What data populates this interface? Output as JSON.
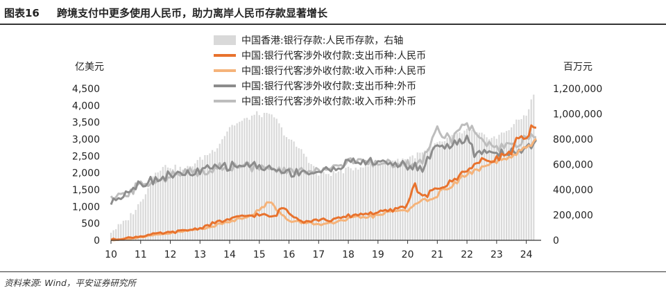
{
  "figure": {
    "number": "图表16",
    "title": "跨境支付中更多使用人民币，助力离岸人民币存款显著增长",
    "source": "资料来源: Wind，平安证券研究所"
  },
  "chart_data": {
    "type": "line",
    "left_axis_unit": "亿美元",
    "right_axis_unit": "百万元",
    "x_tick_labels": [
      "10",
      "11",
      "12",
      "13",
      "14",
      "15",
      "16",
      "17",
      "18",
      "19",
      "20",
      "21",
      "22",
      "23",
      "24"
    ],
    "x_range": [
      2010.0,
      2024.5
    ],
    "left_ticks": [
      "0",
      "500",
      "1,000",
      "1,500",
      "2,000",
      "2,500",
      "3,000",
      "3,500",
      "4,000",
      "4,500"
    ],
    "right_ticks": [
      "0",
      "200,000",
      "400,000",
      "600,000",
      "800,000",
      "1,000,000",
      "1,200,000"
    ],
    "ylim_left": [
      0,
      4500
    ],
    "ylim_right": [
      0,
      1200000
    ],
    "legend_placement": "top-center",
    "grid": false,
    "series": [
      {
        "name": "中国香港:银行存款:人民币存款，右轴",
        "axis": "right",
        "style": "bar",
        "color": "#d9d9d9",
        "points": [
          [
            2010.0,
            70000
          ],
          [
            2010.5,
            150000
          ],
          [
            2011.0,
            300000
          ],
          [
            2011.5,
            550000
          ],
          [
            2011.9,
            590000
          ],
          [
            2012.5,
            560000
          ],
          [
            2013.0,
            640000
          ],
          [
            2013.5,
            720000
          ],
          [
            2013.8,
            820000
          ],
          [
            2014.0,
            900000
          ],
          [
            2014.5,
            950000
          ],
          [
            2014.9,
            1000000
          ],
          [
            2015.5,
            980000
          ],
          [
            2015.8,
            860000
          ],
          [
            2016.0,
            800000
          ],
          [
            2016.5,
            690000
          ],
          [
            2017.0,
            520000
          ],
          [
            2017.5,
            530000
          ],
          [
            2018.0,
            560000
          ],
          [
            2018.5,
            590000
          ],
          [
            2019.0,
            600000
          ],
          [
            2019.5,
            630000
          ],
          [
            2020.0,
            650000
          ],
          [
            2020.5,
            690000
          ],
          [
            2021.0,
            760000
          ],
          [
            2021.5,
            820000
          ],
          [
            2022.0,
            870000
          ],
          [
            2022.5,
            830000
          ],
          [
            2023.0,
            810000
          ],
          [
            2023.5,
            900000
          ],
          [
            2024.0,
            1000000
          ],
          [
            2024.3,
            1180000
          ]
        ]
      },
      {
        "name": "中国:银行代客涉外收付款:支出币种:人民币",
        "axis": "left",
        "style": "line",
        "color": "#e8722d",
        "points": [
          [
            2010.0,
            20
          ],
          [
            2010.5,
            60
          ],
          [
            2011.0,
            120
          ],
          [
            2011.5,
            190
          ],
          [
            2012.0,
            230
          ],
          [
            2012.5,
            290
          ],
          [
            2013.0,
            360
          ],
          [
            2013.5,
            520
          ],
          [
            2014.0,
            620
          ],
          [
            2014.5,
            720
          ],
          [
            2015.0,
            760
          ],
          [
            2015.5,
            690
          ],
          [
            2015.8,
            1000
          ],
          [
            2016.0,
            820
          ],
          [
            2016.5,
            560
          ],
          [
            2017.0,
            610
          ],
          [
            2017.5,
            600
          ],
          [
            2018.0,
            720
          ],
          [
            2018.5,
            790
          ],
          [
            2019.0,
            820
          ],
          [
            2019.5,
            890
          ],
          [
            2020.0,
            1050
          ],
          [
            2020.2,
            1700
          ],
          [
            2020.5,
            1260
          ],
          [
            2021.0,
            1530
          ],
          [
            2021.5,
            1730
          ],
          [
            2022.0,
            2120
          ],
          [
            2022.5,
            2350
          ],
          [
            2023.0,
            2430
          ],
          [
            2023.5,
            2630
          ],
          [
            2023.7,
            3050
          ],
          [
            2024.0,
            2950
          ],
          [
            2024.2,
            3400
          ],
          [
            2024.4,
            3200
          ]
        ]
      },
      {
        "name": "中国:银行代客涉外收付款:收入币种:人民币",
        "axis": "left",
        "style": "line",
        "color": "#f5b37a",
        "points": [
          [
            2010.0,
            10
          ],
          [
            2010.5,
            40
          ],
          [
            2011.0,
            90
          ],
          [
            2011.5,
            150
          ],
          [
            2012.0,
            210
          ],
          [
            2012.5,
            270
          ],
          [
            2013.0,
            340
          ],
          [
            2013.5,
            430
          ],
          [
            2014.0,
            560
          ],
          [
            2014.5,
            690
          ],
          [
            2015.0,
            880
          ],
          [
            2015.4,
            1200
          ],
          [
            2015.6,
            900
          ],
          [
            2016.0,
            560
          ],
          [
            2016.5,
            530
          ],
          [
            2017.0,
            480
          ],
          [
            2017.5,
            500
          ],
          [
            2018.0,
            630
          ],
          [
            2018.5,
            700
          ],
          [
            2019.0,
            720
          ],
          [
            2019.5,
            880
          ],
          [
            2020.0,
            900
          ],
          [
            2020.5,
            1150
          ],
          [
            2021.0,
            1350
          ],
          [
            2021.5,
            1650
          ],
          [
            2022.0,
            1950
          ],
          [
            2022.5,
            2150
          ],
          [
            2023.0,
            2350
          ],
          [
            2023.5,
            2450
          ],
          [
            2024.0,
            2750
          ],
          [
            2024.4,
            3050
          ]
        ]
      },
      {
        "name": "中国:银行代客涉外收付款:支出币种:外币",
        "axis": "left",
        "style": "line",
        "color": "#8c8c8c",
        "points": [
          [
            2010.0,
            1100
          ],
          [
            2010.5,
            1450
          ],
          [
            2011.0,
            1700
          ],
          [
            2011.5,
            1800
          ],
          [
            2012.0,
            1950
          ],
          [
            2012.5,
            1950
          ],
          [
            2013.0,
            2050
          ],
          [
            2013.5,
            2150
          ],
          [
            2014.0,
            2200
          ],
          [
            2014.5,
            2250
          ],
          [
            2015.0,
            2200
          ],
          [
            2015.5,
            2100
          ],
          [
            2016.0,
            2000
          ],
          [
            2016.5,
            2050
          ],
          [
            2017.0,
            2000
          ],
          [
            2017.5,
            2150
          ],
          [
            2018.0,
            2300
          ],
          [
            2018.5,
            2350
          ],
          [
            2019.0,
            2300
          ],
          [
            2019.5,
            2300
          ],
          [
            2020.0,
            2200
          ],
          [
            2020.5,
            2150
          ],
          [
            2021.0,
            2850
          ],
          [
            2021.5,
            2800
          ],
          [
            2022.0,
            3000
          ],
          [
            2022.3,
            2500
          ],
          [
            2022.5,
            2650
          ],
          [
            2023.0,
            2600
          ],
          [
            2023.5,
            2600
          ],
          [
            2024.0,
            2750
          ],
          [
            2024.4,
            2950
          ]
        ]
      },
      {
        "name": "中国:银行代客涉外收付款:收入币种:外币",
        "axis": "left",
        "style": "line",
        "color": "#bdbdbd",
        "points": [
          [
            2010.0,
            1200
          ],
          [
            2010.5,
            1350
          ],
          [
            2011.0,
            1650
          ],
          [
            2011.5,
            1800
          ],
          [
            2012.0,
            1900
          ],
          [
            2012.5,
            2000
          ],
          [
            2013.0,
            2050
          ],
          [
            2013.5,
            2150
          ],
          [
            2014.0,
            2200
          ],
          [
            2014.5,
            2200
          ],
          [
            2015.0,
            2150
          ],
          [
            2015.5,
            2050
          ],
          [
            2016.0,
            2050
          ],
          [
            2016.5,
            2050
          ],
          [
            2017.0,
            2100
          ],
          [
            2017.5,
            2200
          ],
          [
            2018.0,
            2300
          ],
          [
            2018.5,
            2350
          ],
          [
            2019.0,
            2250
          ],
          [
            2019.5,
            2300
          ],
          [
            2020.0,
            2250
          ],
          [
            2020.5,
            2350
          ],
          [
            2021.0,
            3300
          ],
          [
            2021.5,
            3000
          ],
          [
            2022.0,
            3500
          ],
          [
            2022.5,
            2900
          ],
          [
            2023.0,
            2700
          ],
          [
            2023.5,
            2800
          ],
          [
            2024.0,
            3000
          ],
          [
            2024.4,
            3050
          ]
        ]
      }
    ]
  }
}
